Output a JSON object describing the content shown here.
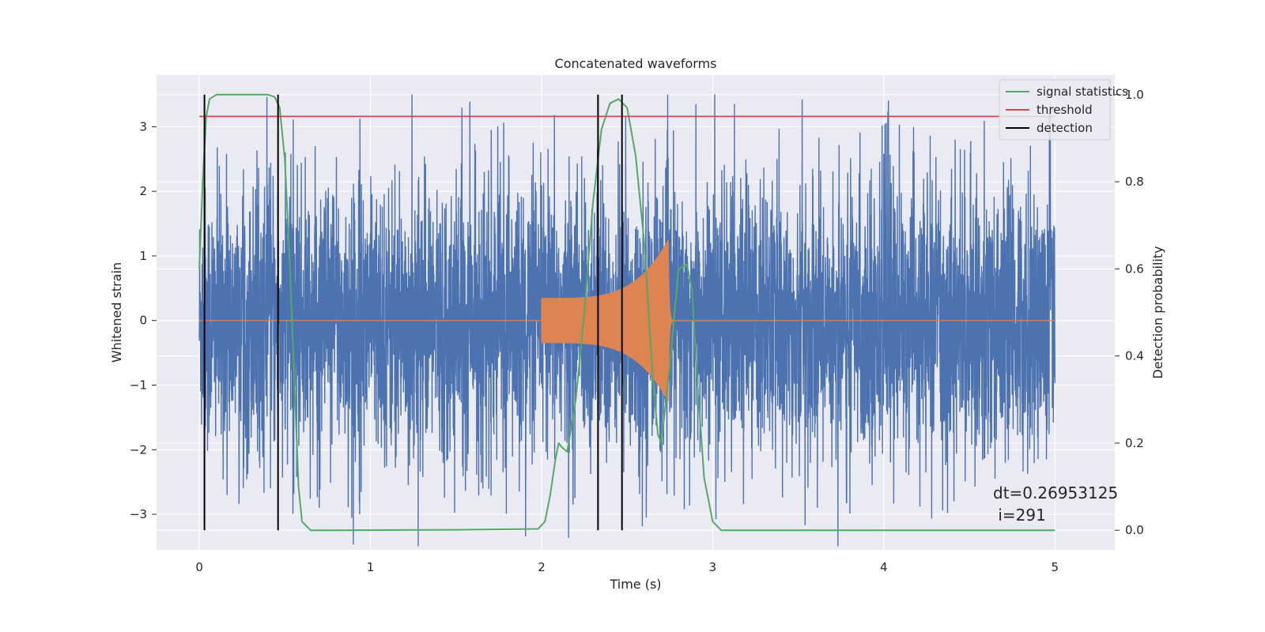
{
  "chart_data": {
    "type": "line",
    "title": "Concatenated waveforms",
    "xlabel": "Time (s)",
    "ylabel": "Whitened strain",
    "y2label": "Detection probability",
    "xlim": [
      -0.25,
      5.35
    ],
    "ylim": [
      -3.55,
      3.8
    ],
    "y2lim": [
      -0.045,
      1.045
    ],
    "xticks": [
      0,
      1,
      2,
      3,
      4,
      5
    ],
    "yticks": [
      -3,
      -2,
      -1,
      0,
      1,
      2,
      3
    ],
    "y2ticks": [
      0.0,
      0.2,
      0.4,
      0.6,
      0.8,
      1.0
    ],
    "xtick_labels": [
      "0",
      "1",
      "2",
      "3",
      "4",
      "5"
    ],
    "ytick_labels": [
      "−3",
      "−2",
      "−1",
      "0",
      "1",
      "2",
      "3"
    ],
    "y2tick_labels": [
      "0.0",
      "0.2",
      "0.4",
      "0.6",
      "0.8",
      "1.0"
    ],
    "grid": true,
    "legend_position": "top-right",
    "series": [
      {
        "role": "noise",
        "color": "#4c72b0",
        "axis": "left",
        "x_range": [
          0,
          5
        ],
        "typical_amplitude": 1.3,
        "peak_amplitude": 3.5
      },
      {
        "role": "chirp",
        "color": "#dd8452",
        "axis": "left",
        "x_range": [
          2.0,
          2.78
        ],
        "start_amplitude": 0.35,
        "peak_time": 2.74,
        "peak_amplitude": 1.25
      },
      {
        "name": "signal statistics",
        "color": "#55a868",
        "axis": "right",
        "x": [
          0.0,
          0.02,
          0.04,
          0.06,
          0.1,
          0.2,
          0.3,
          0.4,
          0.44,
          0.47,
          0.5,
          0.53,
          0.56,
          0.58,
          0.6,
          0.65,
          0.8,
          1.5,
          1.98,
          2.02,
          2.05,
          2.08,
          2.1,
          2.12,
          2.15,
          2.2,
          2.25,
          2.3,
          2.35,
          2.4,
          2.45,
          2.5,
          2.55,
          2.6,
          2.65,
          2.68,
          2.7,
          2.75,
          2.8,
          2.85,
          2.88,
          2.9,
          2.95,
          3.0,
          3.05,
          3.2,
          5.0
        ],
        "y": [
          0.6,
          0.8,
          0.95,
          0.99,
          1.0,
          1.0,
          1.0,
          1.0,
          0.995,
          0.97,
          0.85,
          0.6,
          0.3,
          0.1,
          0.02,
          0.0,
          0.0,
          0.001,
          0.003,
          0.02,
          0.08,
          0.16,
          0.2,
          0.19,
          0.18,
          0.3,
          0.5,
          0.75,
          0.92,
          0.98,
          0.99,
          0.97,
          0.86,
          0.66,
          0.35,
          0.22,
          0.2,
          0.38,
          0.6,
          0.61,
          0.55,
          0.4,
          0.12,
          0.02,
          0.0,
          0.0,
          0.0
        ]
      },
      {
        "name": "threshold",
        "color": "#c44e52",
        "axis": "right",
        "x": [
          0,
          5
        ],
        "y": [
          0.95,
          0.95
        ]
      },
      {
        "name": "detection",
        "color": "#000000",
        "axis": "right",
        "x": [
          0.03,
          0.46,
          2.33,
          2.47
        ],
        "y_range": [
          0,
          1
        ]
      }
    ],
    "annotation": {
      "line1": "dt=0.26953125",
      "line2": " i=291"
    }
  }
}
